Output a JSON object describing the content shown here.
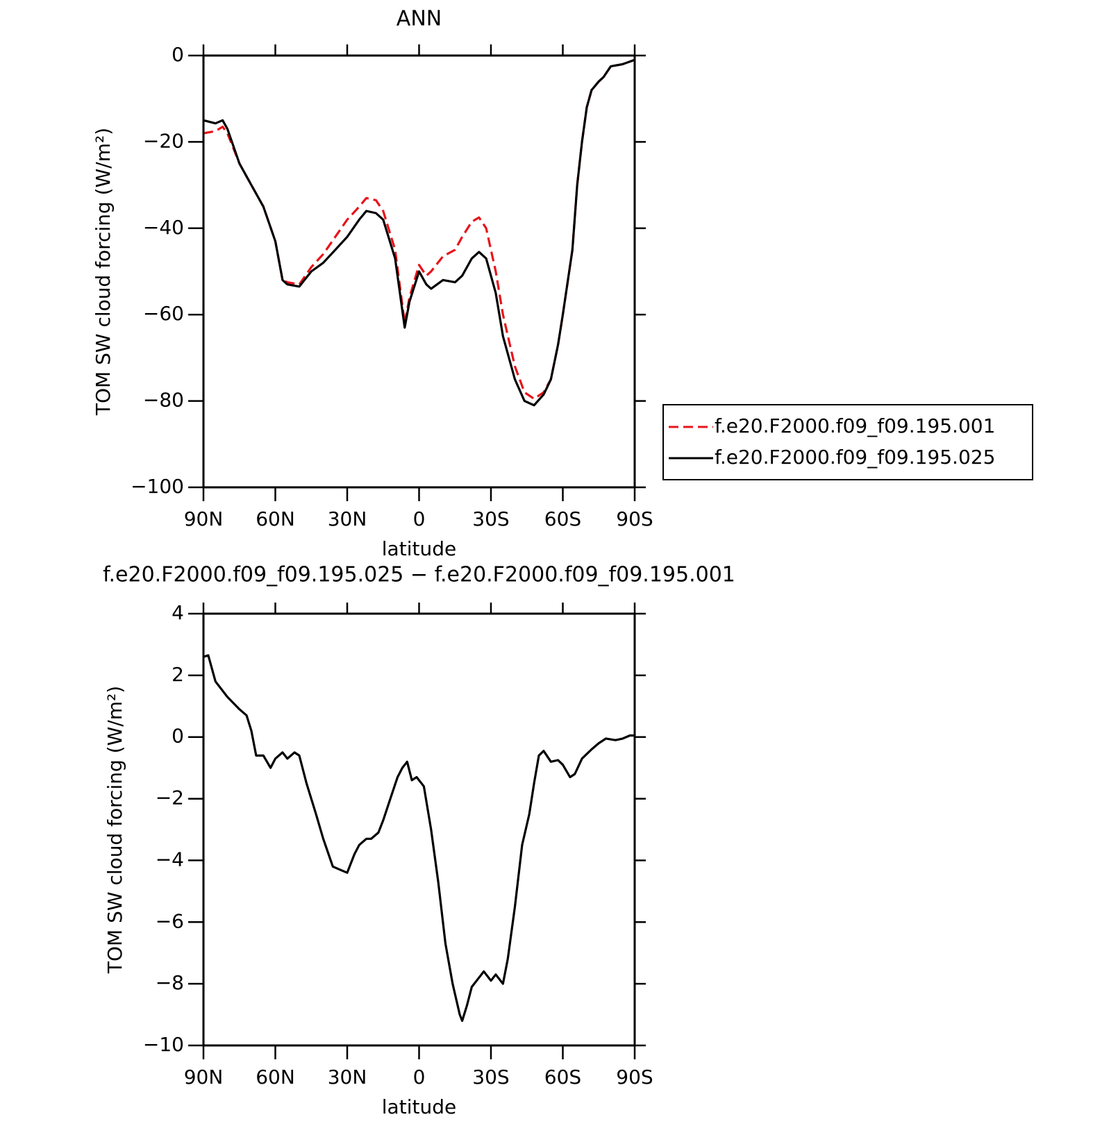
{
  "chart_data": [
    {
      "type": "line",
      "title": "ANN",
      "xlabel": "latitude",
      "ylabel": "TOM SW cloud forcing (W/m²)",
      "x": [
        90,
        85,
        82,
        80,
        75,
        72,
        70,
        65,
        60,
        57,
        55,
        50,
        45,
        40,
        35,
        30,
        25,
        22,
        18,
        15,
        10,
        6,
        4,
        0,
        -3,
        -5,
        -10,
        -15,
        -18,
        -22,
        -25,
        -28,
        -32,
        -35,
        -40,
        -44,
        -48,
        -52,
        -55,
        -58,
        -60,
        -64,
        -66,
        -68,
        -70,
        -72,
        -75,
        -77,
        -80,
        -85,
        -90
      ],
      "series": [
        {
          "name": "f.e20.F2000.f09_f09.195.001",
          "color": "#e8141b",
          "dashed": true,
          "values": [
            -18,
            -17.5,
            -16.5,
            -18,
            -25,
            -28,
            -30,
            -35,
            -43,
            -52,
            -52.5,
            -53,
            -49,
            -46,
            -42,
            -38,
            -35,
            -33,
            -33.5,
            -36,
            -45,
            -62,
            -56,
            -48.5,
            -51,
            -50,
            -46.5,
            -45,
            -42,
            -38.5,
            -37.5,
            -40,
            -50,
            -60,
            -72,
            -78,
            -79.5,
            -78,
            -75,
            -67,
            -60,
            -45,
            -30,
            -20,
            -12,
            -8,
            -6,
            -5,
            -2.5,
            -2,
            -1
          ]
        },
        {
          "name": "f.e20.F2000.f09_f09.195.025",
          "color": "#000000",
          "dashed": false,
          "values": [
            -15,
            -15.7,
            -15,
            -17,
            -25,
            -28,
            -30,
            -35,
            -43,
            -52,
            -53,
            -53.5,
            -50,
            -48,
            -45,
            -42,
            -38,
            -36,
            -36.5,
            -38,
            -47,
            -63,
            -57,
            -50,
            -53,
            -54,
            -52,
            -52.5,
            -51,
            -47,
            -45.5,
            -47,
            -55,
            -65,
            -75,
            -80,
            -81,
            -78.5,
            -75,
            -67,
            -60,
            -45,
            -30,
            -20,
            -12,
            -8,
            -6,
            -5,
            -2.5,
            -2,
            -1
          ]
        }
      ],
      "xlim": [
        90,
        -90
      ],
      "xticks": [
        {
          "value": 90,
          "label": "90N"
        },
        {
          "value": 60,
          "label": "60N"
        },
        {
          "value": 30,
          "label": "30N"
        },
        0,
        {
          "value": -30,
          "label": "30S"
        },
        {
          "value": -60,
          "label": "60S"
        },
        {
          "value": -90,
          "label": "90S"
        }
      ],
      "ylim": [
        -100,
        0
      ],
      "yticks": [
        {
          "value": -100,
          "label": "−100"
        },
        {
          "value": -80,
          "label": "−80"
        },
        {
          "value": -60,
          "label": "−60"
        },
        {
          "value": -40,
          "label": "−40"
        },
        {
          "value": -20,
          "label": "−20"
        },
        0
      ],
      "legend": "right"
    },
    {
      "type": "line",
      "title": "f.e20.F2000.f09_f09.195.025 − f.e20.F2000.f09_f09.195.001",
      "xlabel": "latitude",
      "ylabel": "TOM SW cloud forcing (W/m²)",
      "x": [
        90,
        88,
        85,
        80,
        75,
        72,
        70,
        68,
        65,
        62,
        60,
        57,
        55,
        52,
        50,
        47,
        43,
        40,
        36,
        33,
        30,
        27,
        25,
        22,
        20,
        17,
        15,
        12,
        9,
        7,
        5,
        3,
        1,
        -2,
        -5,
        -8,
        -11,
        -14,
        -17,
        -18,
        -20,
        -22,
        -25,
        -27,
        -30,
        -32,
        -35,
        -37,
        -40,
        -43,
        -46,
        -48,
        -50,
        -52,
        -55,
        -58,
        -60,
        -63,
        -65,
        -68,
        -72,
        -75,
        -78,
        -82,
        -85,
        -88,
        -90
      ],
      "series": [
        {
          "color": "#000000",
          "dashed": false,
          "values": [
            2.6,
            2.65,
            1.8,
            1.3,
            0.9,
            0.7,
            0.2,
            -0.6,
            -0.6,
            -1.0,
            -0.7,
            -0.5,
            -0.7,
            -0.5,
            -0.6,
            -1.5,
            -2.5,
            -3.3,
            -4.2,
            -4.3,
            -4.4,
            -3.8,
            -3.5,
            -3.3,
            -3.3,
            -3.1,
            -2.7,
            -2.0,
            -1.3,
            -1.0,
            -0.8,
            -1.4,
            -1.3,
            -1.6,
            -3.0,
            -4.7,
            -6.7,
            -8.0,
            -9.0,
            -9.2,
            -8.7,
            -8.1,
            -7.8,
            -7.6,
            -7.9,
            -7.7,
            -8.0,
            -7.2,
            -5.5,
            -3.5,
            -2.5,
            -1.5,
            -0.6,
            -0.45,
            -0.8,
            -0.75,
            -0.9,
            -1.3,
            -1.2,
            -0.7,
            -0.4,
            -0.2,
            -0.05,
            -0.1,
            -0.05,
            0.05,
            0.05
          ]
        }
      ],
      "xlim": [
        90,
        -90
      ],
      "xticks": [
        {
          "value": 90,
          "label": "90N"
        },
        {
          "value": 60,
          "label": "60N"
        },
        {
          "value": 30,
          "label": "30N"
        },
        0,
        {
          "value": -30,
          "label": "30S"
        },
        {
          "value": -60,
          "label": "60S"
        },
        {
          "value": -90,
          "label": "90S"
        }
      ],
      "ylim": [
        -10,
        4
      ],
      "yticks": [
        {
          "value": -10,
          "label": "−10"
        },
        {
          "value": -8,
          "label": "−8"
        },
        {
          "value": -6,
          "label": "−6"
        },
        {
          "value": -4,
          "label": "−4"
        },
        {
          "value": -2,
          "label": "−2"
        },
        0,
        2,
        4
      ]
    }
  ]
}
